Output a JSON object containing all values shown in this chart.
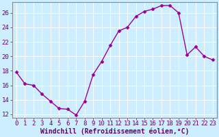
{
  "x": [
    0,
    1,
    2,
    3,
    4,
    5,
    6,
    7,
    8,
    9,
    10,
    11,
    12,
    13,
    14,
    15,
    16,
    17,
    18,
    19,
    20,
    21,
    22,
    23
  ],
  "y": [
    17.8,
    16.2,
    16.0,
    14.8,
    13.8,
    12.8,
    12.7,
    11.9,
    13.8,
    17.5,
    19.3,
    21.5,
    23.5,
    24.0,
    25.5,
    26.2,
    26.5,
    27.0,
    27.0,
    26.0,
    20.2,
    21.3,
    20.0,
    19.5
  ],
  "line_color": "#990099",
  "marker": "D",
  "marker_size": 2.5,
  "bg_color": "#cceeff",
  "grid_color": "#ffffff",
  "xlabel": "Windchill (Refroidissement éolien,°C)",
  "xlim": [
    -0.5,
    23.5
  ],
  "ylim": [
    11.5,
    27.5
  ],
  "yticks": [
    12,
    14,
    16,
    18,
    20,
    22,
    24,
    26
  ],
  "xticks": [
    0,
    1,
    2,
    3,
    4,
    5,
    6,
    7,
    8,
    9,
    10,
    11,
    12,
    13,
    14,
    15,
    16,
    17,
    18,
    19,
    20,
    21,
    22,
    23
  ],
  "tick_label_fontsize": 6.5,
  "xlabel_fontsize": 7,
  "axis_color": "#660066",
  "spine_color": "#888888"
}
